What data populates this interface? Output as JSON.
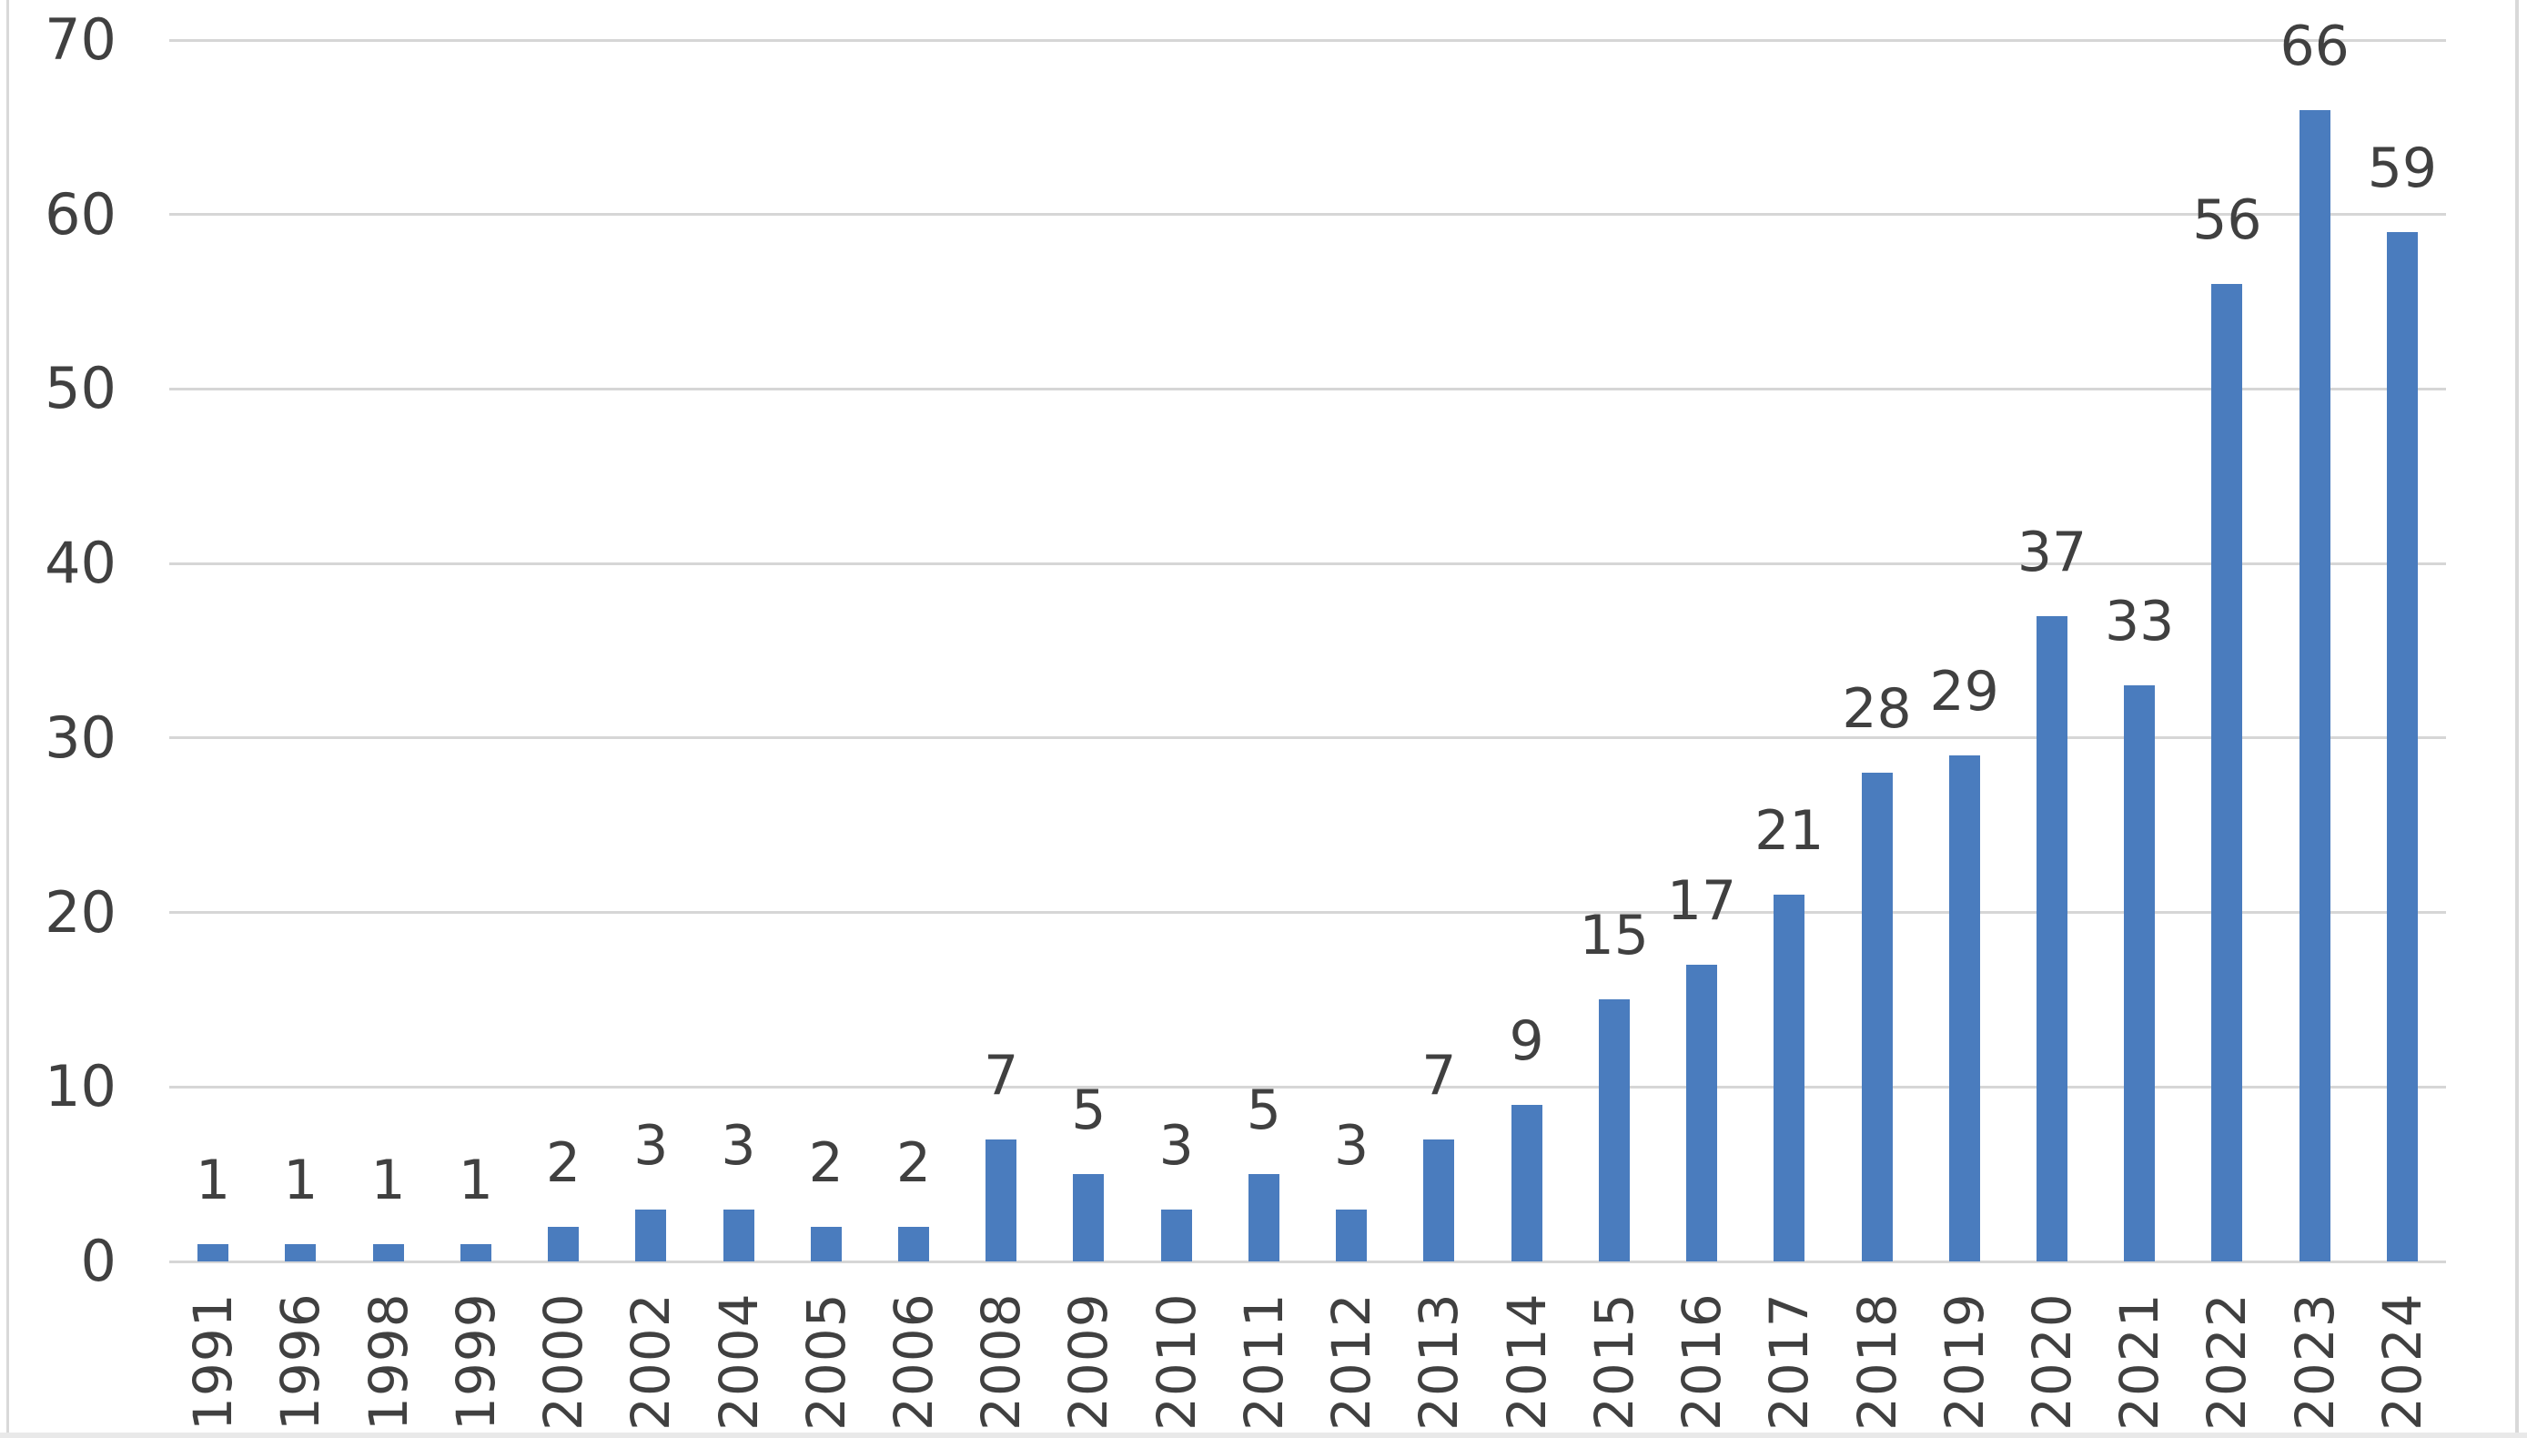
{
  "chart_data": {
    "type": "bar",
    "title": "",
    "xlabel": "",
    "ylabel": "",
    "categories": [
      "1991",
      "1996",
      "1998",
      "1999",
      "2000",
      "2002",
      "2004",
      "2005",
      "2006",
      "2008",
      "2009",
      "2010",
      "2011",
      "2012",
      "2013",
      "2014",
      "2015",
      "2016",
      "2017",
      "2018",
      "2019",
      "2020",
      "2021",
      "2022",
      "2023",
      "2024"
    ],
    "values": [
      1,
      1,
      1,
      1,
      2,
      3,
      3,
      2,
      2,
      7,
      5,
      3,
      5,
      3,
      7,
      9,
      15,
      17,
      21,
      28,
      29,
      37,
      33,
      56,
      66,
      59
    ],
    "ylim": [
      0,
      70
    ],
    "yticks": [
      0,
      10,
      20,
      30,
      40,
      50,
      60,
      70
    ],
    "grid": true,
    "legend": false,
    "data_labels": true,
    "colors": {
      "bar": "#4A7CBE",
      "text": "#404040",
      "gridline": "#D6D6D6",
      "border": "#D9D9D9",
      "bottom_strip": "#E9E9E9",
      "background": "#FFFFFF"
    }
  }
}
